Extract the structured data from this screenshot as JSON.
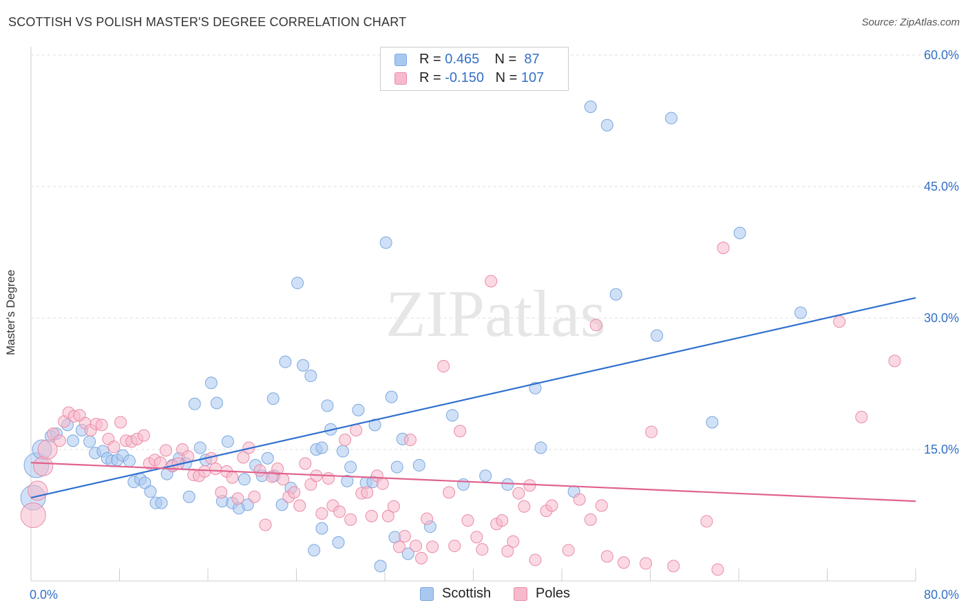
{
  "title": "SCOTTISH VS POLISH MASTER'S DEGREE CORRELATION CHART",
  "source": "Source: ZipAtlas.com",
  "watermark": "ZIPatlas",
  "legend": {
    "rows": [
      {
        "r_label": "R = ",
        "r_value": "0.465",
        "n_label": "N = ",
        "n_value": " 87",
        "color": "#a9c8f0",
        "stroke": "#7aa6df"
      },
      {
        "r_label": "R = ",
        "r_value": "-0.150",
        "n_label": "N = ",
        "n_value": "107",
        "color": "#f7b9cc",
        "stroke": "#e98aa6"
      }
    ],
    "bottom": [
      {
        "label": "Scottish",
        "color": "#a9c8f0",
        "stroke": "#7aa6df"
      },
      {
        "label": "Poles",
        "color": "#f7b9cc",
        "stroke": "#e98aa6"
      }
    ]
  },
  "chart_data": {
    "type": "scatter",
    "title": "SCOTTISH VS POLISH MASTER'S DEGREE CORRELATION CHART",
    "xlabel": "",
    "ylabel": "Master's Degree",
    "xlim": [
      0,
      80
    ],
    "ylim": [
      0,
      60
    ],
    "x_tick_labels": [
      "0.0%",
      "80.0%"
    ],
    "y_tick_labels": [
      "15.0%",
      "30.0%",
      "45.0%",
      "60.0%"
    ],
    "y_ticks": [
      15,
      30,
      45,
      60
    ],
    "grid": true,
    "legend_position": "top-center",
    "series": [
      {
        "name": "Scottish",
        "color": "#a9c8f0",
        "stroke": "#7aa6df",
        "line_color": "#2e6fcf",
        "trend": {
          "x": [
            0,
            80
          ],
          "y": [
            9.5,
            32.3
          ]
        },
        "points": [
          [
            0.2,
            9.5,
            3
          ],
          [
            0.5,
            13.2,
            3
          ],
          [
            1.0,
            15.0,
            2
          ],
          [
            1.8,
            16.5,
            1
          ],
          [
            2.3,
            16.8,
            1
          ],
          [
            3.3,
            17.8,
            1
          ],
          [
            3.8,
            16.0,
            1
          ],
          [
            4.6,
            17.2,
            1
          ],
          [
            5.3,
            15.9,
            1
          ],
          [
            5.8,
            14.6,
            1
          ],
          [
            6.5,
            14.8,
            1
          ],
          [
            6.9,
            14.0,
            1
          ],
          [
            7.3,
            13.7,
            1
          ],
          [
            7.8,
            13.8,
            1
          ],
          [
            8.3,
            14.3,
            1
          ],
          [
            8.9,
            13.7,
            1
          ],
          [
            9.3,
            11.3,
            1
          ],
          [
            9.9,
            11.6,
            1
          ],
          [
            10.3,
            11.2,
            1
          ],
          [
            10.8,
            10.2,
            1
          ],
          [
            11.3,
            8.9,
            1
          ],
          [
            11.8,
            8.9,
            1
          ],
          [
            12.3,
            12.2,
            1
          ],
          [
            12.8,
            13.2,
            1
          ],
          [
            13.4,
            14.0,
            1
          ],
          [
            14.0,
            13.4,
            1
          ],
          [
            14.3,
            9.6,
            1
          ],
          [
            14.8,
            20.2,
            1
          ],
          [
            15.3,
            15.2,
            1
          ],
          [
            15.8,
            13.8,
            1
          ],
          [
            16.3,
            22.6,
            1
          ],
          [
            16.8,
            20.3,
            1
          ],
          [
            17.3,
            9.1,
            1
          ],
          [
            17.8,
            15.9,
            1
          ],
          [
            18.2,
            8.9,
            1
          ],
          [
            18.8,
            8.3,
            1
          ],
          [
            19.3,
            11.6,
            1
          ],
          [
            19.6,
            8.7,
            1
          ],
          [
            20.3,
            13.2,
            1
          ],
          [
            20.9,
            12.0,
            1
          ],
          [
            21.4,
            14.0,
            1
          ],
          [
            22.0,
            12.0,
            1
          ],
          [
            22.7,
            8.7,
            1
          ],
          [
            23.5,
            10.6,
            1
          ],
          [
            24.1,
            34.0,
            1
          ],
          [
            24.6,
            24.6,
            1
          ],
          [
            25.3,
            23.4,
            1
          ],
          [
            23.0,
            25.0,
            1
          ],
          [
            21.9,
            20.8,
            1
          ],
          [
            25.8,
            15.0,
            1
          ],
          [
            26.3,
            6.0,
            1
          ],
          [
            26.8,
            20.0,
            1
          ],
          [
            27.8,
            4.4,
            1
          ],
          [
            28.2,
            14.8,
            1
          ],
          [
            28.6,
            11.4,
            1
          ],
          [
            29.6,
            19.5,
            1
          ],
          [
            30.3,
            11.2,
            1
          ],
          [
            31.1,
            17.8,
            1
          ],
          [
            31.6,
            1.7,
            1
          ],
          [
            32.1,
            38.6,
            1
          ],
          [
            32.6,
            21.0,
            1
          ],
          [
            33.1,
            13.0,
            1
          ],
          [
            34.1,
            3.1,
            1
          ],
          [
            33.6,
            16.2,
            1
          ],
          [
            35.1,
            13.2,
            1
          ],
          [
            36.1,
            6.2,
            1
          ],
          [
            38.1,
            18.9,
            1
          ],
          [
            39.1,
            11.0,
            1
          ],
          [
            41.1,
            12.0,
            1
          ],
          [
            43.1,
            11.0,
            1
          ],
          [
            45.6,
            22.0,
            1
          ],
          [
            46.1,
            15.2,
            1
          ],
          [
            49.1,
            10.2,
            1
          ],
          [
            50.6,
            54.1,
            1
          ],
          [
            52.1,
            52.0,
            1
          ],
          [
            52.9,
            32.7,
            1
          ],
          [
            56.6,
            28.0,
            1
          ],
          [
            57.9,
            52.8,
            1
          ],
          [
            61.6,
            18.1,
            1
          ],
          [
            64.1,
            39.7,
            1
          ],
          [
            69.6,
            30.6,
            1
          ],
          [
            25.6,
            3.5,
            1
          ],
          [
            27.1,
            17.3,
            1
          ],
          [
            28.9,
            13.0,
            1
          ],
          [
            30.9,
            11.3,
            1
          ],
          [
            32.9,
            5.0,
            1
          ],
          [
            26.3,
            15.2,
            1
          ]
        ]
      },
      {
        "name": "Poles",
        "color": "#f7b9cc",
        "stroke": "#e98aa6",
        "line_color": "#e0628c",
        "trend": {
          "x": [
            0,
            80
          ],
          "y": [
            13.5,
            9.1
          ]
        },
        "points": [
          [
            0.2,
            7.5,
            3
          ],
          [
            0.6,
            10.3,
            2
          ],
          [
            1.1,
            13.1,
            2
          ],
          [
            1.5,
            15.0,
            2
          ],
          [
            2.0,
            16.8,
            1
          ],
          [
            2.6,
            16.0,
            1
          ],
          [
            3.0,
            18.2,
            1
          ],
          [
            3.4,
            19.2,
            1
          ],
          [
            3.9,
            18.8,
            1
          ],
          [
            4.4,
            18.9,
            1
          ],
          [
            4.9,
            18.0,
            1
          ],
          [
            5.4,
            17.2,
            1
          ],
          [
            5.9,
            17.9,
            1
          ],
          [
            6.4,
            17.8,
            1
          ],
          [
            7.0,
            16.2,
            1
          ],
          [
            7.5,
            15.3,
            1
          ],
          [
            8.1,
            18.1,
            1
          ],
          [
            8.6,
            16.0,
            1
          ],
          [
            9.1,
            15.9,
            1
          ],
          [
            9.6,
            16.2,
            1
          ],
          [
            10.2,
            16.6,
            1
          ],
          [
            10.7,
            13.4,
            1
          ],
          [
            11.2,
            13.8,
            1
          ],
          [
            11.7,
            13.5,
            1
          ],
          [
            12.2,
            14.9,
            1
          ],
          [
            12.8,
            13.1,
            1
          ],
          [
            13.3,
            13.4,
            1
          ],
          [
            13.7,
            15.0,
            1
          ],
          [
            14.2,
            14.2,
            1
          ],
          [
            14.7,
            12.1,
            1
          ],
          [
            15.2,
            12.0,
            1
          ],
          [
            15.7,
            12.5,
            1
          ],
          [
            16.3,
            14.0,
            1
          ],
          [
            16.7,
            12.8,
            1
          ],
          [
            17.2,
            10.1,
            1
          ],
          [
            17.7,
            12.5,
            1
          ],
          [
            18.2,
            11.8,
            1
          ],
          [
            18.7,
            9.4,
            1
          ],
          [
            19.2,
            14.1,
            1
          ],
          [
            19.7,
            15.2,
            1
          ],
          [
            20.2,
            9.6,
            1
          ],
          [
            20.7,
            12.6,
            1
          ],
          [
            21.2,
            6.4,
            1
          ],
          [
            21.8,
            11.9,
            1
          ],
          [
            22.3,
            12.8,
            1
          ],
          [
            22.8,
            11.6,
            1
          ],
          [
            23.3,
            9.6,
            1
          ],
          [
            23.8,
            10.1,
            1
          ],
          [
            24.3,
            8.6,
            1
          ],
          [
            24.8,
            13.4,
            1
          ],
          [
            25.3,
            11.0,
            1
          ],
          [
            25.8,
            12.0,
            1
          ],
          [
            26.3,
            7.7,
            1
          ],
          [
            26.9,
            11.7,
            1
          ],
          [
            27.3,
            8.6,
            1
          ],
          [
            27.9,
            7.9,
            1
          ],
          [
            28.4,
            16.1,
            1
          ],
          [
            28.9,
            7.0,
            1
          ],
          [
            29.4,
            17.2,
            1
          ],
          [
            29.9,
            10.0,
            1
          ],
          [
            30.4,
            10.1,
            1
          ],
          [
            30.8,
            7.4,
            1
          ],
          [
            31.3,
            12.0,
            1
          ],
          [
            31.8,
            11.1,
            1
          ],
          [
            32.3,
            7.4,
            1
          ],
          [
            32.8,
            8.5,
            1
          ],
          [
            33.3,
            3.9,
            1
          ],
          [
            33.8,
            5.1,
            1
          ],
          [
            34.3,
            16.1,
            1
          ],
          [
            34.8,
            4.0,
            1
          ],
          [
            35.3,
            2.6,
            1
          ],
          [
            35.8,
            7.1,
            1
          ],
          [
            36.3,
            3.9,
            1
          ],
          [
            37.3,
            24.5,
            1
          ],
          [
            37.8,
            10.1,
            1
          ],
          [
            38.3,
            4.0,
            1
          ],
          [
            38.8,
            17.1,
            1
          ],
          [
            39.5,
            6.9,
            1
          ],
          [
            40.3,
            5.0,
            1
          ],
          [
            40.8,
            3.6,
            1
          ],
          [
            41.6,
            34.2,
            1
          ],
          [
            42.1,
            6.5,
            1
          ],
          [
            42.6,
            6.9,
            1
          ],
          [
            43.1,
            3.4,
            1
          ],
          [
            43.6,
            4.5,
            1
          ],
          [
            44.1,
            10.0,
            1
          ],
          [
            44.6,
            8.5,
            1
          ],
          [
            45.1,
            10.9,
            1
          ],
          [
            45.6,
            2.4,
            1
          ],
          [
            46.6,
            8.0,
            1
          ],
          [
            47.1,
            8.6,
            1
          ],
          [
            48.6,
            3.5,
            1
          ],
          [
            49.6,
            9.3,
            1
          ],
          [
            50.6,
            7.0,
            1
          ],
          [
            51.1,
            29.2,
            1
          ],
          [
            51.6,
            8.6,
            1
          ],
          [
            52.1,
            2.8,
            1
          ],
          [
            53.6,
            2.1,
            1
          ],
          [
            55.6,
            2.0,
            1
          ],
          [
            56.1,
            17.0,
            1
          ],
          [
            58.1,
            1.7,
            1
          ],
          [
            61.1,
            6.8,
            1
          ],
          [
            62.1,
            1.3,
            1
          ],
          [
            62.6,
            38.0,
            1
          ],
          [
            73.1,
            29.6,
            1
          ],
          [
            75.1,
            18.7,
            1
          ],
          [
            78.1,
            25.1,
            1
          ]
        ]
      }
    ]
  }
}
